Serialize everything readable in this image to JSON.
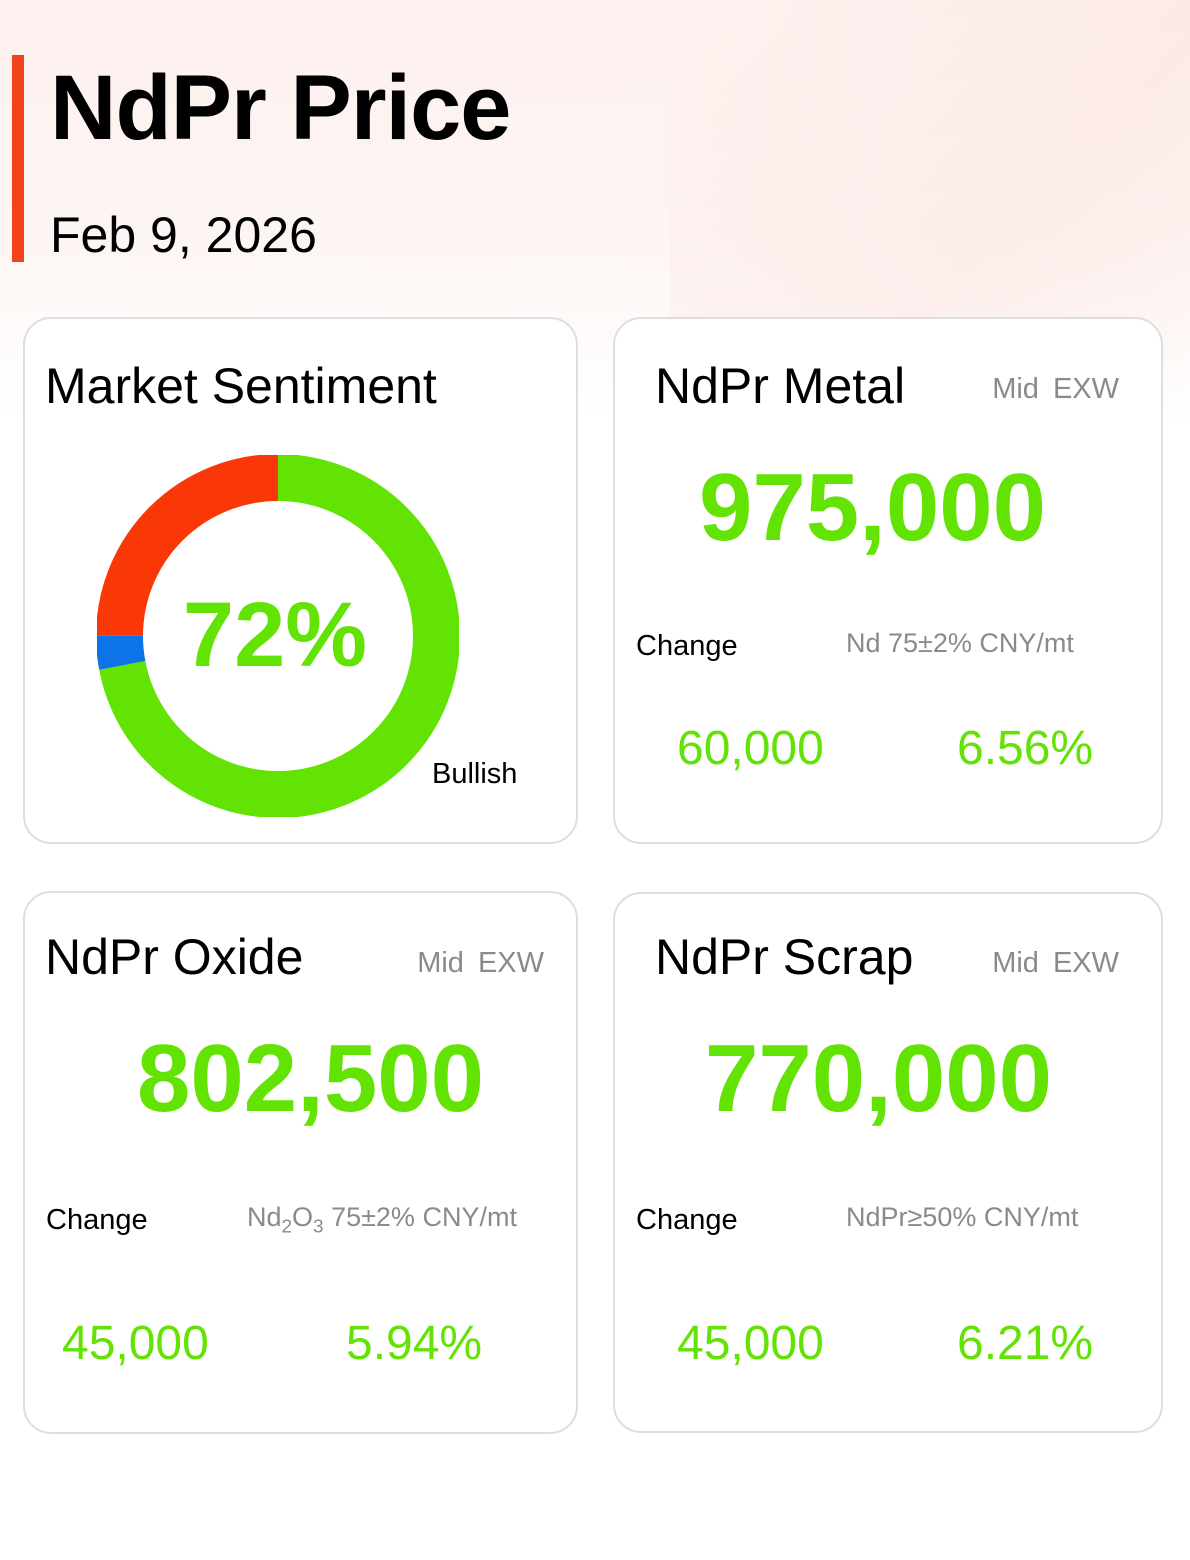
{
  "header": {
    "title": "NdPr Price",
    "date": "Feb 9, 2026"
  },
  "colors": {
    "accent": "#f3431a",
    "positive": "#63e303",
    "bearish": "#fa3807",
    "neutral": "#0d74e8"
  },
  "sentiment": {
    "title": "Market Sentiment",
    "percent": "72%",
    "label": "Bullish",
    "shares": {
      "bullish": 72,
      "neutral": 3,
      "bearish": 25
    }
  },
  "metal": {
    "title": "NdPr Metal",
    "mid": "Mid",
    "exw": "EXW",
    "price": "975,000",
    "change_label": "Change",
    "spec": "Nd 75±2% CNY/mt",
    "change_abs": "60,000",
    "change_pct": "6.56%"
  },
  "oxide": {
    "title": "NdPr Oxide",
    "mid": "Mid",
    "exw": "EXW",
    "price": "802,500",
    "change_label": "Change",
    "spec_prefix": "Nd",
    "spec_sub1": "2",
    "spec_mid": "O",
    "spec_sub2": "3",
    "spec_suffix": " 75±2% CNY/mt",
    "change_abs": "45,000",
    "change_pct": "5.94%"
  },
  "scrap": {
    "title": "NdPr Scrap",
    "mid": "Mid",
    "exw": "EXW",
    "price": "770,000",
    "change_label": "Change",
    "spec": "NdPr≥50% CNY/mt",
    "change_abs": "45,000",
    "change_pct": "6.21%"
  }
}
